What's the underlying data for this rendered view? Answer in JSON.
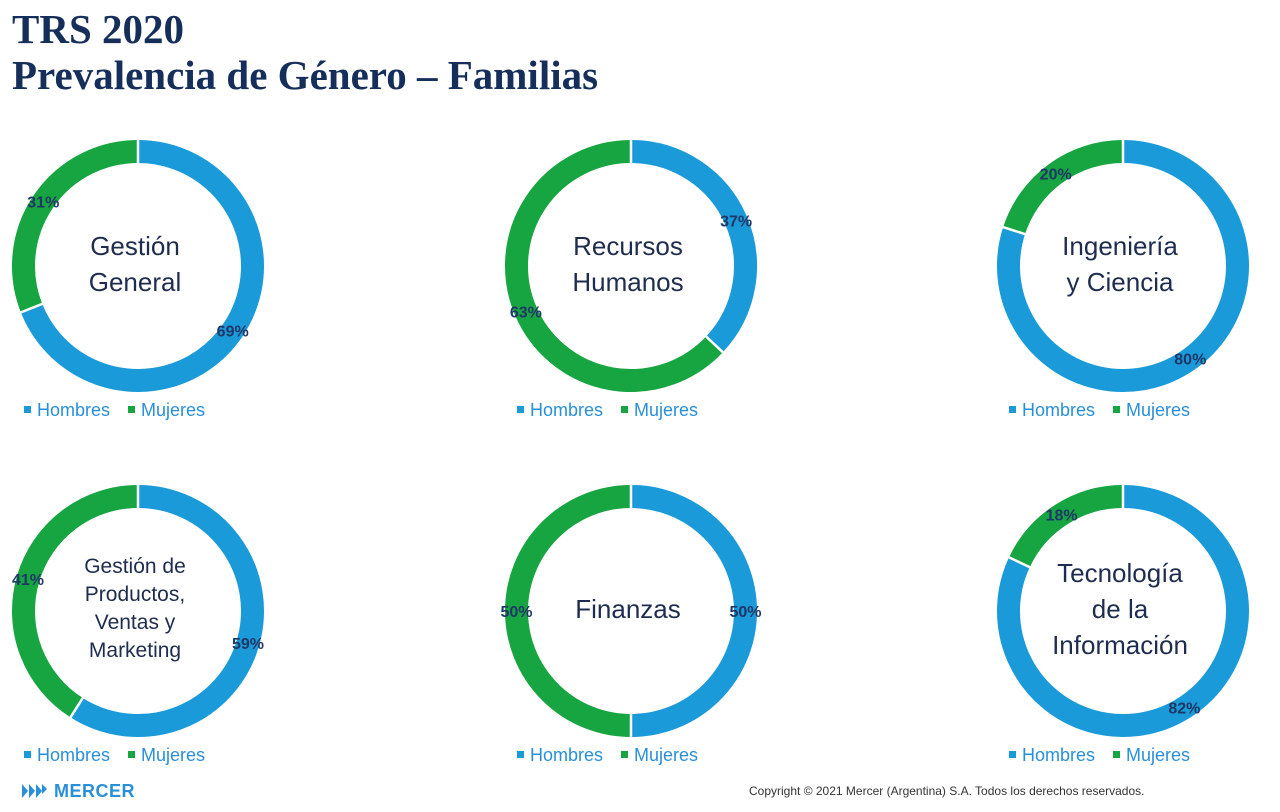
{
  "header": {
    "line1": "TRS 2020",
    "line2": "Prevalencia de Género – Familias"
  },
  "colors": {
    "hombres": "#1a9ad9",
    "mujeres": "#16a540"
  },
  "legend": {
    "hombres": "Hombres",
    "mujeres": "Mujeres"
  },
  "chart_data": [
    {
      "type": "pie",
      "center_label": [
        "Gestión",
        "General"
      ],
      "series": [
        {
          "name": "Hombres",
          "value": 69,
          "label": "69%"
        },
        {
          "name": "Mujeres",
          "value": 31,
          "label": "31%"
        }
      ]
    },
    {
      "type": "pie",
      "center_label": [
        "Recursos",
        "Humanos"
      ],
      "series": [
        {
          "name": "Hombres",
          "value": 37,
          "label": "37%"
        },
        {
          "name": "Mujeres",
          "value": 63,
          "label": "63%"
        }
      ]
    },
    {
      "type": "pie",
      "center_label": [
        "Ingeniería",
        "y Ciencia"
      ],
      "series": [
        {
          "name": "Hombres",
          "value": 80,
          "label": "80%"
        },
        {
          "name": "Mujeres",
          "value": 20,
          "label": "20%"
        }
      ]
    },
    {
      "type": "pie",
      "center_label": [
        "Gestión de",
        "Productos,",
        "Ventas y",
        "Marketing"
      ],
      "series": [
        {
          "name": "Hombres",
          "value": 59,
          "label": "59%"
        },
        {
          "name": "Mujeres",
          "value": 41,
          "label": "41%"
        }
      ]
    },
    {
      "type": "pie",
      "center_label": [
        "Finanzas"
      ],
      "series": [
        {
          "name": "Hombres",
          "value": 50,
          "label": "50%"
        },
        {
          "name": "Mujeres",
          "value": 50,
          "label": "50%"
        }
      ]
    },
    {
      "type": "pie",
      "center_label": [
        "Tecnología",
        "de la",
        "Información"
      ],
      "series": [
        {
          "name": "Hombres",
          "value": 82,
          "label": "82%"
        },
        {
          "name": "Mujeres",
          "value": 18,
          "label": "18%"
        }
      ]
    }
  ],
  "footer": {
    "brand": "MERCER",
    "copyright": "Copyright © 2021 Mercer (Argentina) S.A. Todos los derechos reservados."
  }
}
